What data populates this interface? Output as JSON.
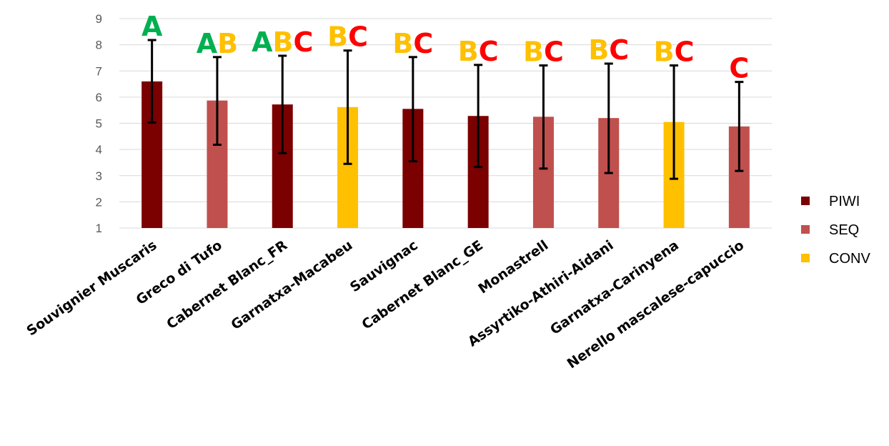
{
  "chart_data": {
    "type": "bar",
    "title": "",
    "xlabel": "",
    "ylabel": "",
    "ylim": [
      1,
      9
    ],
    "yticks": [
      1,
      2,
      3,
      4,
      5,
      6,
      7,
      8,
      9
    ],
    "grid": "horizontal",
    "legend_position": "right",
    "categories": [
      "Souvignier Muscaris",
      "Greco di Tufo",
      "Cabernet Blanc_FR",
      "Garnatxa-Macabeu",
      "Sauvignac",
      "Cabernet Blanc_GE",
      "Monastrell",
      "Assyrtiko-Athiri-Aidani",
      "Garnatxa-Carinyena",
      "Nerello mascalese-capuccio"
    ],
    "values": [
      6.6,
      5.87,
      5.72,
      5.62,
      5.55,
      5.28,
      5.25,
      5.2,
      5.05,
      4.88
    ],
    "error_low": [
      5.03,
      4.18,
      3.86,
      3.45,
      3.55,
      3.33,
      3.27,
      3.1,
      2.88,
      3.18
    ],
    "error_high": [
      8.18,
      7.53,
      7.58,
      7.78,
      7.53,
      7.23,
      7.21,
      7.28,
      7.21,
      6.58
    ],
    "groups": [
      "PIWI",
      "SEQ",
      "PIWI",
      "CONV",
      "PIWI",
      "PIWI",
      "SEQ",
      "SEQ",
      "CONV",
      "SEQ"
    ],
    "legend": [
      {
        "name": "PIWI",
        "color": "#7B0000"
      },
      {
        "name": "SEQ",
        "color": "#C0504D"
      },
      {
        "name": "CONV",
        "color": "#FFC000"
      }
    ],
    "letter_colors": {
      "A": "#00B050",
      "B": "#FFC000",
      "C": "#FF0000"
    },
    "significance_letters": [
      "A",
      "AB",
      "ABC",
      "BC",
      "BC",
      "BC",
      "BC",
      "BC",
      "BC",
      "C"
    ],
    "error_bar_color": "#000000",
    "grid_color": "#D9D9D9"
  }
}
